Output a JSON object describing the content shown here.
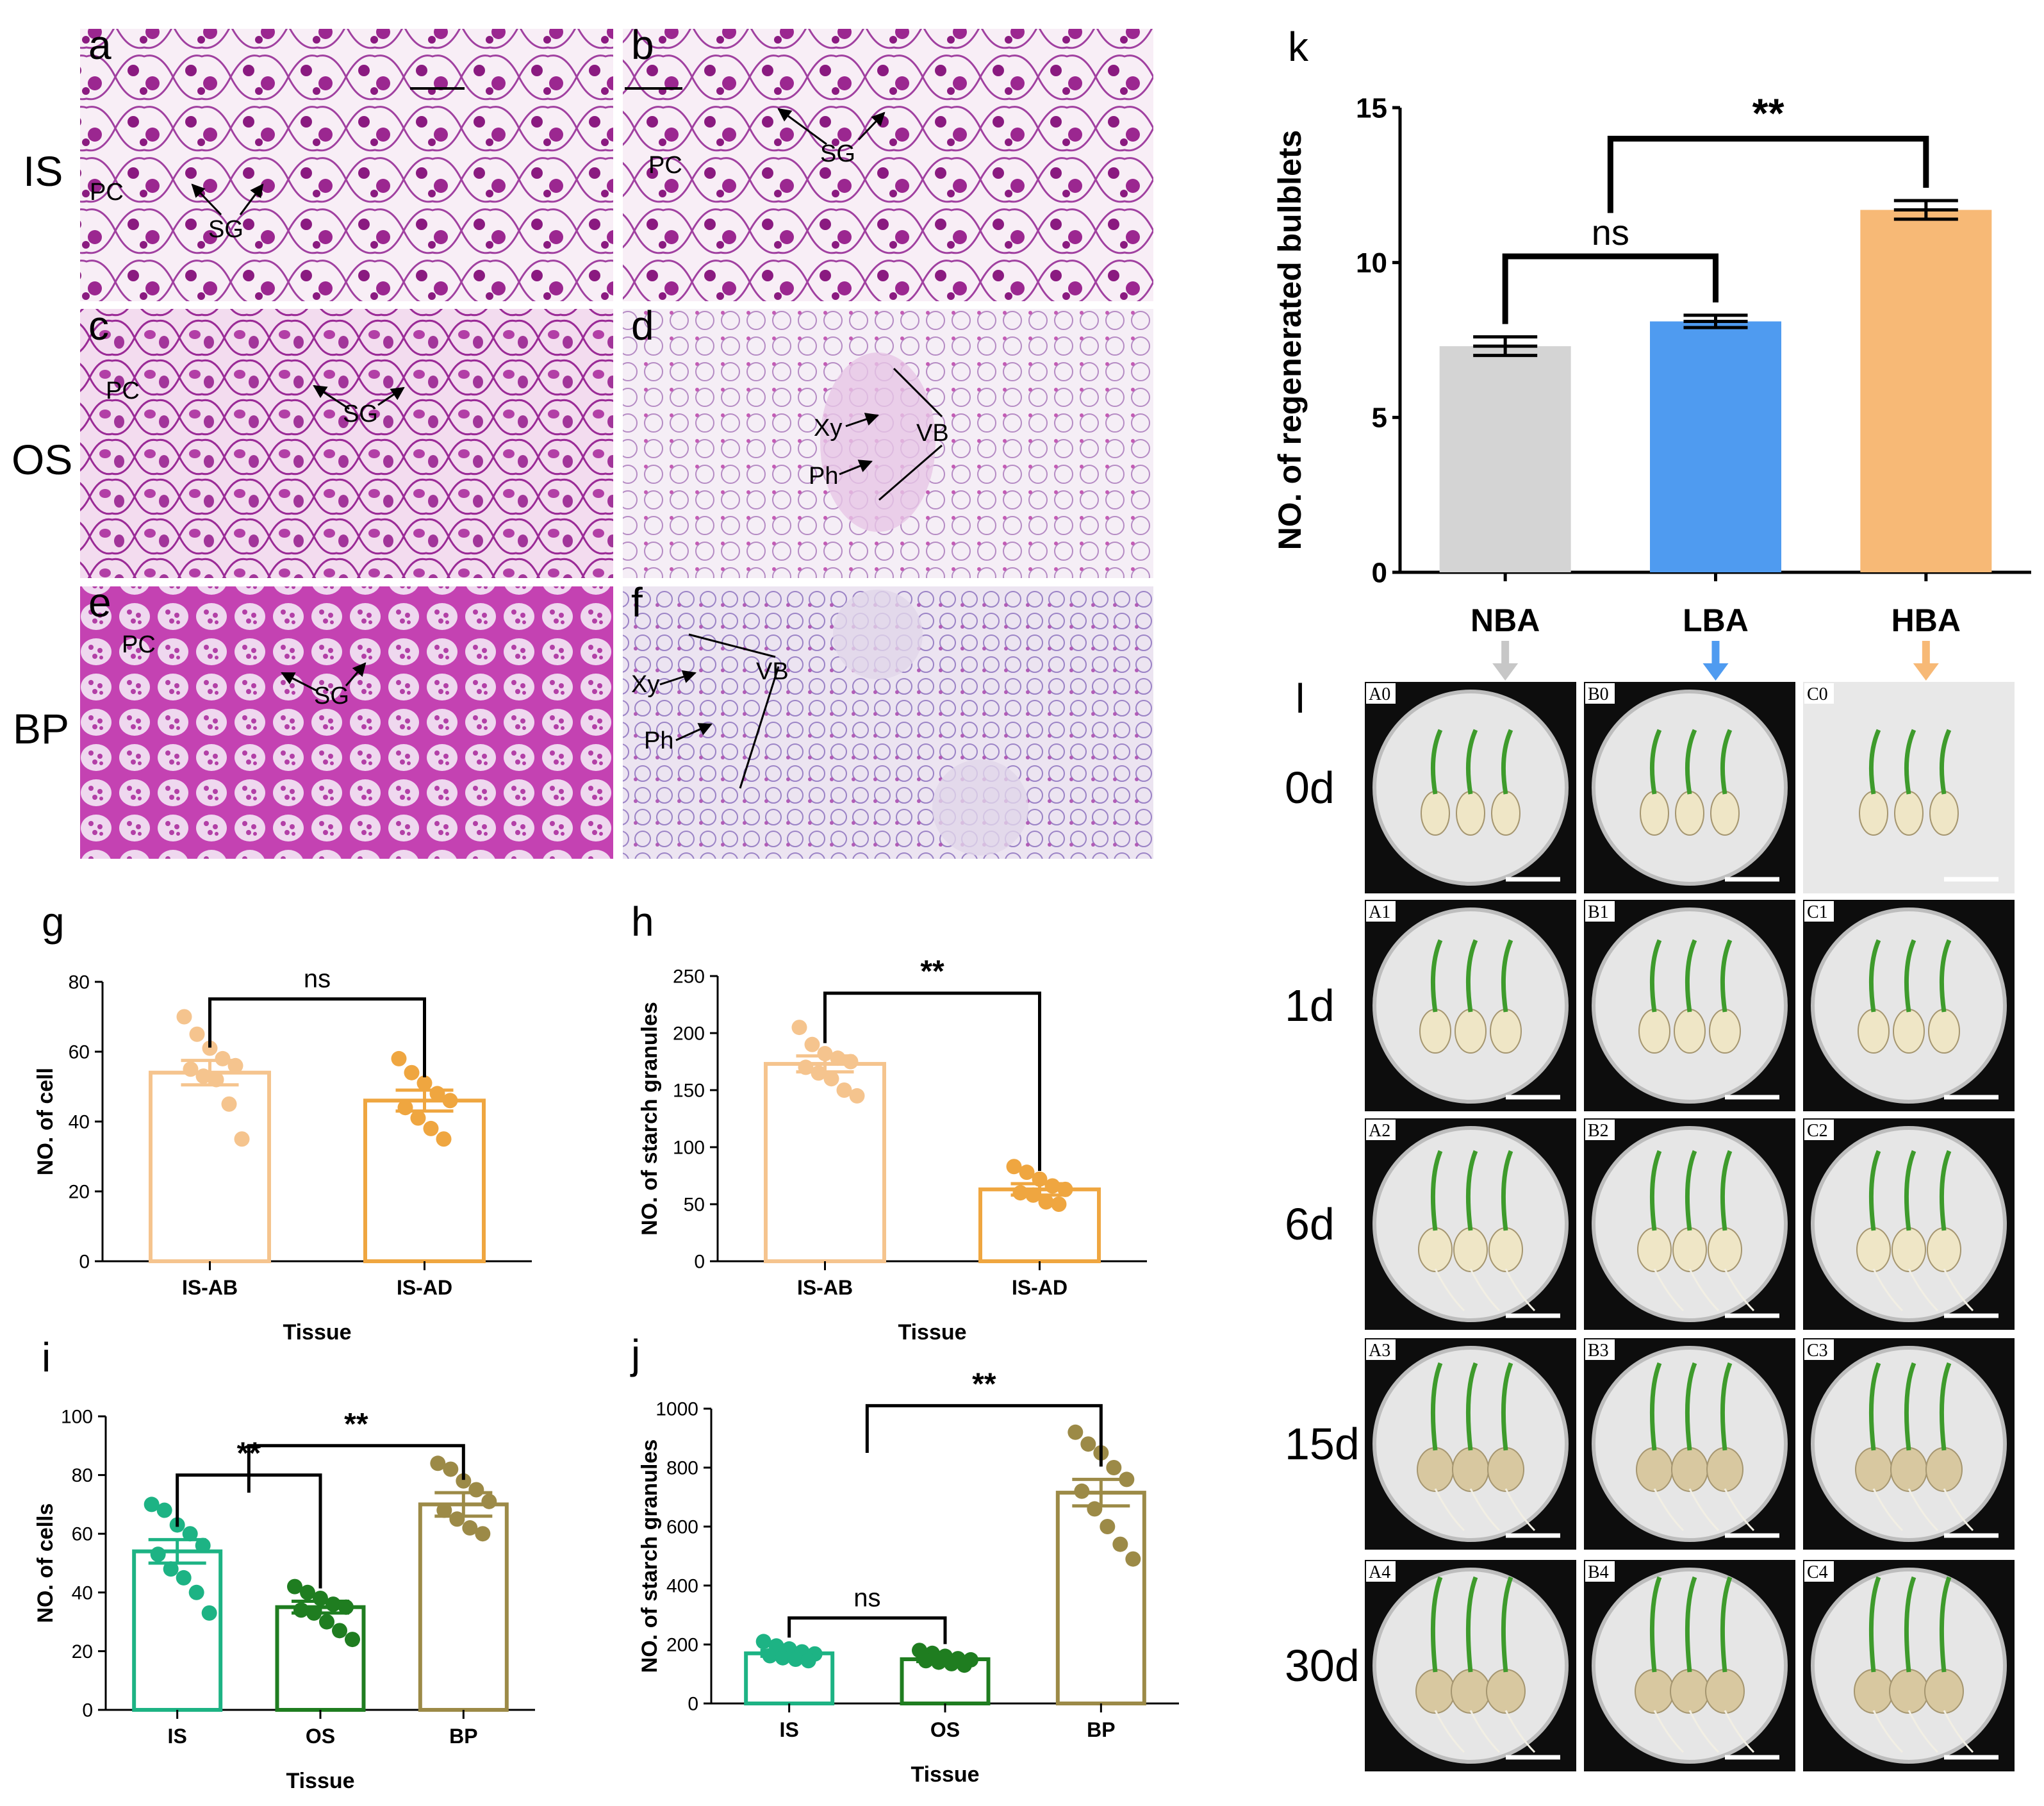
{
  "micrographs": {
    "row_labels": [
      "IS",
      "OS",
      "BP"
    ],
    "panels": [
      {
        "id": "a",
        "row": "IS",
        "labels": [
          "PC",
          "SG"
        ]
      },
      {
        "id": "b",
        "row": "IS",
        "labels": [
          "PC",
          "SG"
        ]
      },
      {
        "id": "c",
        "row": "OS",
        "labels": [
          "PC",
          "SG"
        ]
      },
      {
        "id": "d",
        "row": "OS",
        "labels": [
          "Xy",
          "VB",
          "Ph"
        ]
      },
      {
        "id": "e",
        "row": "BP",
        "labels": [
          "PC",
          "SG"
        ]
      },
      {
        "id": "f",
        "row": "BP",
        "labels": [
          "Xy",
          "VB",
          "Ph"
        ]
      }
    ],
    "colors": {
      "stain": "#b5359e",
      "background": "#f6ecf4",
      "granule": "#8a1a80"
    }
  },
  "chart_data": [
    {
      "panel": "g",
      "type": "bar",
      "categories": [
        "IS-AB",
        "IS-AD"
      ],
      "values": [
        54,
        46
      ],
      "error": [
        3.5,
        3
      ],
      "points": [
        [
          70,
          65,
          61,
          58,
          56,
          55,
          53,
          52,
          45,
          35
        ],
        [
          58,
          54,
          51,
          48,
          46,
          44,
          41,
          38,
          35
        ]
      ],
      "ylabel": "NO. of cell",
      "xlabel": "Tissue",
      "ylim": [
        0,
        80
      ],
      "yticks": [
        0,
        20,
        40,
        60,
        80
      ],
      "colors": [
        "#f5c48e",
        "#efa640"
      ],
      "significance": [
        {
          "between": [
            0,
            1
          ],
          "label": "ns"
        }
      ]
    },
    {
      "panel": "h",
      "type": "bar",
      "categories": [
        "IS-AB",
        "IS-AD"
      ],
      "values": [
        173,
        63
      ],
      "error": [
        7,
        5
      ],
      "points": [
        [
          205,
          190,
          182,
          178,
          175,
          170,
          165,
          160,
          150,
          145
        ],
        [
          83,
          78,
          72,
          66,
          63,
          60,
          58,
          52,
          50
        ]
      ],
      "ylabel": "NO. of starch granules",
      "xlabel": "Tissue",
      "ylim": [
        0,
        250
      ],
      "yticks": [
        0,
        50,
        100,
        150,
        200,
        250
      ],
      "colors": [
        "#f5c48e",
        "#efa640"
      ],
      "significance": [
        {
          "between": [
            0,
            1
          ],
          "label": "**"
        }
      ]
    },
    {
      "panel": "i",
      "type": "bar",
      "categories": [
        "IS",
        "OS",
        "BP"
      ],
      "values": [
        54,
        35,
        70
      ],
      "error": [
        4,
        2,
        4
      ],
      "points": [
        [
          70,
          68,
          63,
          60,
          56,
          53,
          48,
          45,
          40,
          33
        ],
        [
          42,
          40,
          38,
          36,
          35,
          34,
          33,
          30,
          27,
          24
        ],
        [
          84,
          82,
          78,
          75,
          71,
          68,
          65,
          62,
          60
        ]
      ],
      "ylabel": "NO. of cells",
      "xlabel": "Tissue",
      "ylim": [
        0,
        100
      ],
      "yticks": [
        0,
        20,
        40,
        60,
        80,
        100
      ],
      "colors": [
        "#1db384",
        "#1f7d20",
        "#9c8a47"
      ],
      "significance": [
        {
          "between": [
            0,
            1
          ],
          "label": "**"
        },
        {
          "between": [
            1,
            2
          ],
          "label": "**"
        }
      ]
    },
    {
      "panel": "j",
      "type": "bar",
      "categories": [
        "IS",
        "OS",
        "BP"
      ],
      "values": [
        170,
        150,
        715
      ],
      "error": [
        10,
        8,
        45
      ],
      "points": [
        [
          210,
          195,
          185,
          175,
          168,
          162,
          155,
          150,
          145
        ],
        [
          180,
          170,
          160,
          152,
          148,
          145,
          140,
          135,
          130
        ],
        [
          920,
          880,
          850,
          800,
          760,
          720,
          660,
          600,
          540,
          490
        ]
      ],
      "ylabel": "NO. of starch granules",
      "xlabel": "Tissue",
      "ylim": [
        0,
        1000
      ],
      "yticks": [
        0,
        200,
        400,
        600,
        800,
        1000
      ],
      "colors": [
        "#1db384",
        "#1f7d20",
        "#9c8a47"
      ],
      "significance": [
        {
          "between": [
            0,
            1
          ],
          "label": "ns"
        },
        {
          "between": [
            1,
            2
          ],
          "label": "**"
        }
      ]
    },
    {
      "panel": "k",
      "type": "bar",
      "categories": [
        "NBA",
        "LBA",
        "HBA"
      ],
      "values": [
        7.3,
        8.1,
        11.7
      ],
      "error": [
        0.3,
        0.2,
        0.3
      ],
      "ylabel": "NO. of regenerated bulblets",
      "xlabel": "",
      "ylim": [
        0,
        15
      ],
      "yticks": [
        0,
        5,
        10,
        15
      ],
      "colors": [
        "#d4d4d4",
        "#4f9bf0",
        "#f7b976"
      ],
      "significance": [
        {
          "between": [
            0,
            1
          ],
          "label": "ns"
        },
        {
          "between": [
            1,
            2
          ],
          "label": "**"
        }
      ]
    }
  ],
  "photo_grid": {
    "panel": "l",
    "arrow_colors": [
      "#c7c7c7",
      "#4f9bf0",
      "#f7b976"
    ],
    "columns": [
      "A",
      "B",
      "C"
    ],
    "rows": [
      {
        "day": "0d",
        "tags": [
          "A0",
          "B0",
          "C0"
        ]
      },
      {
        "day": "1d",
        "tags": [
          "A1",
          "B1",
          "C1"
        ]
      },
      {
        "day": "6d",
        "tags": [
          "A2",
          "B2",
          "C2"
        ]
      },
      {
        "day": "15d",
        "tags": [
          "A3",
          "B3",
          "C3"
        ]
      },
      {
        "day": "30d",
        "tags": [
          "A4",
          "B4",
          "C4"
        ]
      }
    ]
  }
}
